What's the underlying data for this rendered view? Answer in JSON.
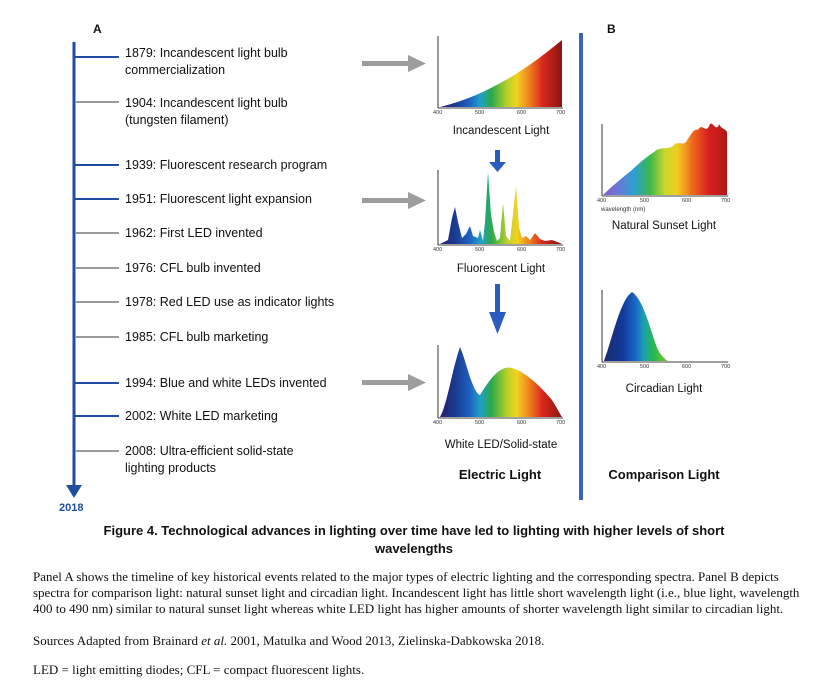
{
  "panel_a_label": "A",
  "panel_b_label": "B",
  "timeline": {
    "end_year": "2018",
    "events": [
      {
        "text": "1879: Incandescent light bulb\ncommercialization",
        "color": "#1f4ea1"
      },
      {
        "text": "1904: Incandescent light bulb\n(tungsten filament)",
        "color": "#9a9a9a"
      },
      {
        "text": "1939: Fluorescent research program",
        "color": "#1f4ea1"
      },
      {
        "text": "1951: Fluorescent light expansion",
        "color": "#1f4ea1"
      },
      {
        "text": "1962: First LED invented",
        "color": "#9a9a9a"
      },
      {
        "text": "1976: CFL bulb invented",
        "color": "#9a9a9a"
      },
      {
        "text": "1978: Red LED use as indicator lights",
        "color": "#9a9a9a"
      },
      {
        "text": "1985: CFL bulb marketing",
        "color": "#9a9a9a"
      },
      {
        "text": "1994: Blue and white LEDs invented",
        "color": "#1f4ea1"
      },
      {
        "text": "2002: White LED marketing",
        "color": "#1f4ea1"
      },
      {
        "text": "2008: Ultra-efficient solid-state\nlighting products",
        "color": "#9a9a9a"
      }
    ]
  },
  "spectra": {
    "incandescent": {
      "caption": "Incandescent Light",
      "ticks": [
        "400",
        "500",
        "600",
        "700"
      ]
    },
    "fluorescent": {
      "caption": "Fluorescent Light",
      "ticks": [
        "400",
        "500",
        "600",
        "700"
      ]
    },
    "white_led": {
      "caption": "White LED/Solid-state",
      "ticks": [
        "400",
        "500",
        "600",
        "700"
      ]
    },
    "sunset": {
      "caption": "Natural Sunset Light",
      "ticks": [
        "400",
        "500",
        "600",
        "700"
      ],
      "xlabel": "wavelength (nm)"
    },
    "circadian": {
      "caption": "Circadian Light",
      "ticks": [
        "400",
        "500",
        "600",
        "700"
      ]
    }
  },
  "column_titles": {
    "electric": "Electric Light",
    "comparison": "Comparison Light"
  },
  "colors": {
    "timeline_blue": "#1f4ea1",
    "arrow_gray": "#9d9d9d",
    "arrow_blue": "#2a5bbf",
    "divider_blue": "#3d63b8"
  },
  "figure_title": "Figure 4. Technological advances in lighting over time have led to lighting with higher levels of short\nwavelengths",
  "paragraphs": {
    "p1": "Panel A shows the timeline of key historical events related to the major types of electric lighting and the corresponding spectra. Panel B depicts spectra for comparison light: natural sunset light and circadian light. Incandescent light has little short wavelength light (i.e., blue light, wavelength 400 to 490 nm) similar to natural sunset light whereas white LED light has higher amounts of shorter wavelength light similar to circadian light.",
    "sources_prefix": "Sources Adapted from Brainard ",
    "sources_etal": "et al.",
    "sources_suffix": " 2001, Matulka and Wood 2013, Zielinska-Dabkowska 2018.",
    "abbrev": "LED = light emitting diodes; CFL = compact fluorescent lights."
  }
}
